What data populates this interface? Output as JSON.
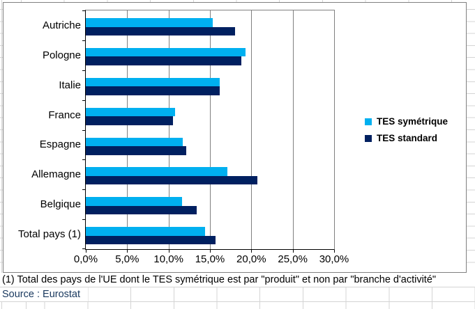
{
  "chart_data": {
    "type": "bar",
    "orientation": "horizontal",
    "title": "",
    "categories": [
      "Autriche",
      "Pologne",
      "Italie",
      "France",
      "Espagne",
      "Allemagne",
      "Belgique",
      "Total pays (1)"
    ],
    "series": [
      {
        "name": "TES symétrique",
        "color": "#00B0F0",
        "values": [
          15.3,
          19.3,
          16.2,
          10.8,
          11.7,
          17.1,
          11.6,
          14.4
        ]
      },
      {
        "name": "TES standard",
        "color": "#002060",
        "values": [
          18.0,
          18.8,
          16.2,
          10.5,
          12.1,
          20.7,
          13.4,
          15.7
        ]
      }
    ],
    "x_ticks": [
      "0,0%",
      "5,0%",
      "10,0%",
      "15,0%",
      "20,0%",
      "25,0%",
      "30,0%"
    ],
    "xlim": [
      0,
      30
    ],
    "grid": true,
    "legend_position": "right-middle",
    "gridline_color": "#808080"
  },
  "notes": {
    "footnote": "(1) Total des pays de l'UE dont le TES symétrique est par \"produit\" et non par \"branche d'activité\"",
    "source": "Source : Eurostat"
  }
}
